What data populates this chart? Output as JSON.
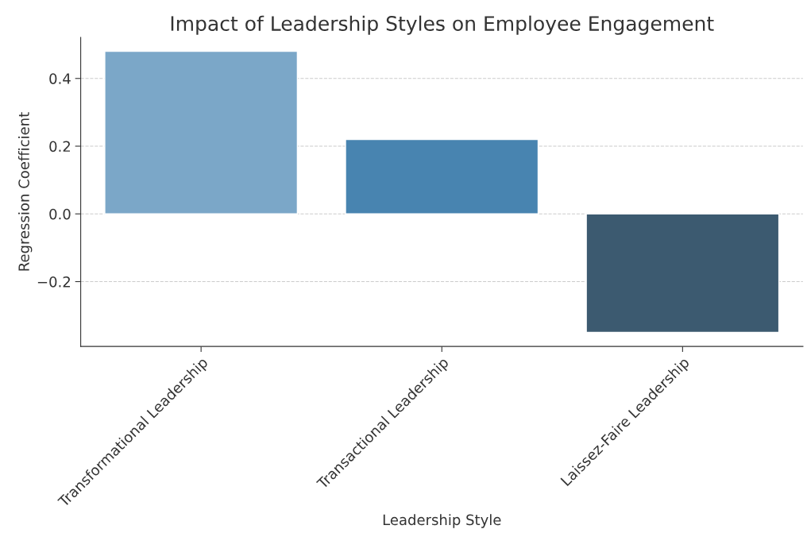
{
  "chart_data": {
    "type": "bar",
    "title": "Impact of Leadership Styles on Employee Engagement",
    "xlabel": "Leadership Style",
    "ylabel": "Regression Coefficient",
    "categories": [
      "Transformational Leadership",
      "Transactional Leadership",
      "Laissez-Faire Leadership"
    ],
    "values": [
      0.48,
      0.22,
      -0.35
    ],
    "colors": [
      "#7ba7c8",
      "#4884b0",
      "#3c5a70"
    ],
    "ylim": [
      -0.3915,
      0.5215
    ],
    "yticks": [
      {
        "value": -0.2,
        "label": "−0.2"
      },
      {
        "value": 0,
        "label": "0.0"
      },
      0.2,
      0.4
    ],
    "grid": "y"
  }
}
